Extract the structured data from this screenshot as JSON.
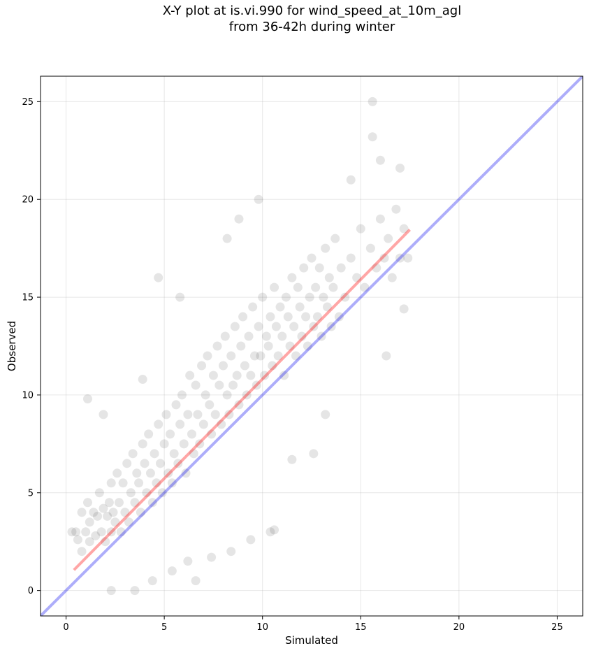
{
  "chart_data": {
    "type": "scatter",
    "title": "X-Y plot at is.vi.990 for wind_speed_at_10m_agl",
    "subtitle": "from 36-42h during winter",
    "xlabel": "Simulated",
    "ylabel": "Observed",
    "xlim": [
      -1.3,
      26.3
    ],
    "ylim": [
      -1.3,
      26.3
    ],
    "xticks": [
      0,
      5,
      10,
      15,
      20,
      25
    ],
    "yticks": [
      0,
      5,
      10,
      15,
      20,
      25
    ],
    "grid": true,
    "colors": {
      "points": "#000000",
      "regression": "#ff0000",
      "identity": "#0000ee"
    },
    "regression_line": {
      "x": [
        0.4,
        17.5
      ],
      "y": [
        1.05,
        18.45
      ]
    },
    "identity_line": {
      "x": [
        -1.3,
        26.3
      ],
      "y": [
        -1.3,
        26.3
      ]
    },
    "series": [
      {
        "x": [
          0.5,
          0.6,
          0.8,
          0.8,
          1.0,
          1.1,
          1.2,
          1.2,
          1.4,
          1.5,
          1.6,
          1.7,
          1.8,
          1.9,
          2.0,
          2.1,
          2.2,
          2.3,
          2.3,
          2.4,
          2.5,
          2.6,
          2.7,
          2.8,
          2.9,
          3.0,
          3.1,
          3.2,
          3.3,
          3.4,
          3.5,
          3.6,
          3.7,
          3.8,
          3.9,
          4.0,
          4.1,
          4.2,
          4.3,
          4.4,
          4.5,
          4.6,
          4.7,
          4.8,
          4.9,
          5.0,
          5.1,
          5.2,
          5.3,
          5.4,
          5.5,
          5.6,
          5.7,
          5.8,
          5.9,
          6.0,
          6.1,
          6.2,
          6.3,
          6.4,
          6.5,
          6.6,
          6.7,
          6.8,
          6.9,
          7.0,
          7.1,
          7.2,
          7.3,
          7.4,
          7.5,
          7.6,
          7.7,
          7.8,
          7.9,
          8.0,
          8.1,
          8.2,
          8.3,
          8.4,
          8.5,
          8.6,
          8.7,
          8.8,
          8.9,
          9.0,
          9.1,
          9.2,
          9.3,
          9.4,
          9.5,
          9.6,
          9.7,
          9.8,
          9.9,
          10.0,
          10.1,
          10.2,
          10.3,
          10.4,
          10.5,
          10.6,
          10.7,
          10.8,
          10.9,
          11.0,
          11.1,
          11.2,
          11.3,
          11.4,
          11.5,
          11.6,
          11.7,
          11.8,
          11.9,
          12.0,
          12.1,
          12.2,
          12.3,
          12.4,
          12.5,
          12.6,
          12.7,
          12.8,
          12.9,
          13.0,
          13.1,
          13.2,
          13.3,
          13.4,
          13.5,
          13.6,
          13.7,
          13.9,
          14.0,
          14.2,
          14.5,
          14.8,
          15.0,
          15.2,
          15.5,
          15.6,
          15.6,
          15.8,
          16.0,
          16.2,
          16.4,
          16.6,
          16.8,
          17.0,
          17.2,
          17.4,
          1.1,
          1.9,
          3.9,
          4.7,
          5.8,
          8.2,
          8.8,
          9.8,
          10.6,
          6.6,
          0.3,
          2.3,
          3.5,
          4.4,
          5.4,
          6.2,
          7.4,
          8.4,
          9.4,
          10.4,
          11.5,
          12.6,
          13.2,
          14.5,
          16.3,
          17.0,
          17.2,
          16.0
        ],
        "y": [
          3.0,
          2.6,
          4.0,
          2.0,
          3.0,
          4.5,
          2.5,
          3.5,
          4.0,
          2.8,
          3.8,
          5.0,
          3.0,
          4.2,
          2.5,
          3.8,
          4.5,
          3.0,
          5.5,
          4.0,
          3.5,
          6.0,
          4.5,
          3.0,
          5.5,
          4.0,
          6.5,
          3.5,
          5.0,
          7.0,
          4.5,
          6.0,
          5.5,
          4.0,
          7.5,
          6.5,
          5.0,
          8.0,
          6.0,
          4.5,
          7.0,
          5.5,
          8.5,
          6.5,
          5.0,
          7.5,
          9.0,
          6.0,
          8.0,
          5.5,
          7.0,
          9.5,
          6.5,
          8.5,
          10.0,
          7.5,
          6.0,
          9.0,
          11.0,
          8.0,
          7.0,
          10.5,
          9.0,
          7.5,
          11.5,
          8.5,
          10.0,
          12.0,
          9.5,
          8.0,
          11.0,
          9.0,
          12.5,
          10.5,
          8.5,
          11.5,
          13.0,
          10.0,
          9.0,
          12.0,
          10.5,
          13.5,
          11.0,
          9.5,
          12.5,
          14.0,
          11.5,
          10.0,
          13.0,
          11.0,
          14.5,
          12.0,
          10.5,
          13.5,
          12.0,
          15.0,
          11.0,
          13.0,
          12.5,
          14.0,
          11.5,
          15.5,
          13.5,
          12.0,
          14.5,
          13.0,
          11.0,
          15.0,
          14.0,
          12.5,
          16.0,
          13.5,
          12.0,
          15.5,
          14.5,
          13.0,
          16.5,
          14.0,
          12.5,
          15.0,
          17.0,
          13.5,
          15.5,
          14.0,
          16.5,
          13.0,
          15.0,
          17.5,
          14.5,
          16.0,
          13.5,
          15.5,
          18.0,
          14.0,
          16.5,
          15.0,
          17.0,
          16.0,
          18.5,
          15.5,
          17.5,
          25.0,
          23.2,
          16.5,
          19.0,
          17.0,
          18.0,
          16.0,
          19.5,
          17.0,
          18.5,
          17.0,
          9.8,
          9.0,
          10.8,
          16.0,
          15.0,
          18.0,
          19.0,
          20.0,
          3.1,
          0.5,
          3.0,
          0.0,
          0.0,
          0.5,
          1.0,
          1.5,
          1.7,
          2.0,
          2.6,
          3.0,
          6.7,
          7.0,
          9.0,
          21.0,
          12.0,
          21.6,
          14.4,
          22.0
        ]
      }
    ]
  }
}
